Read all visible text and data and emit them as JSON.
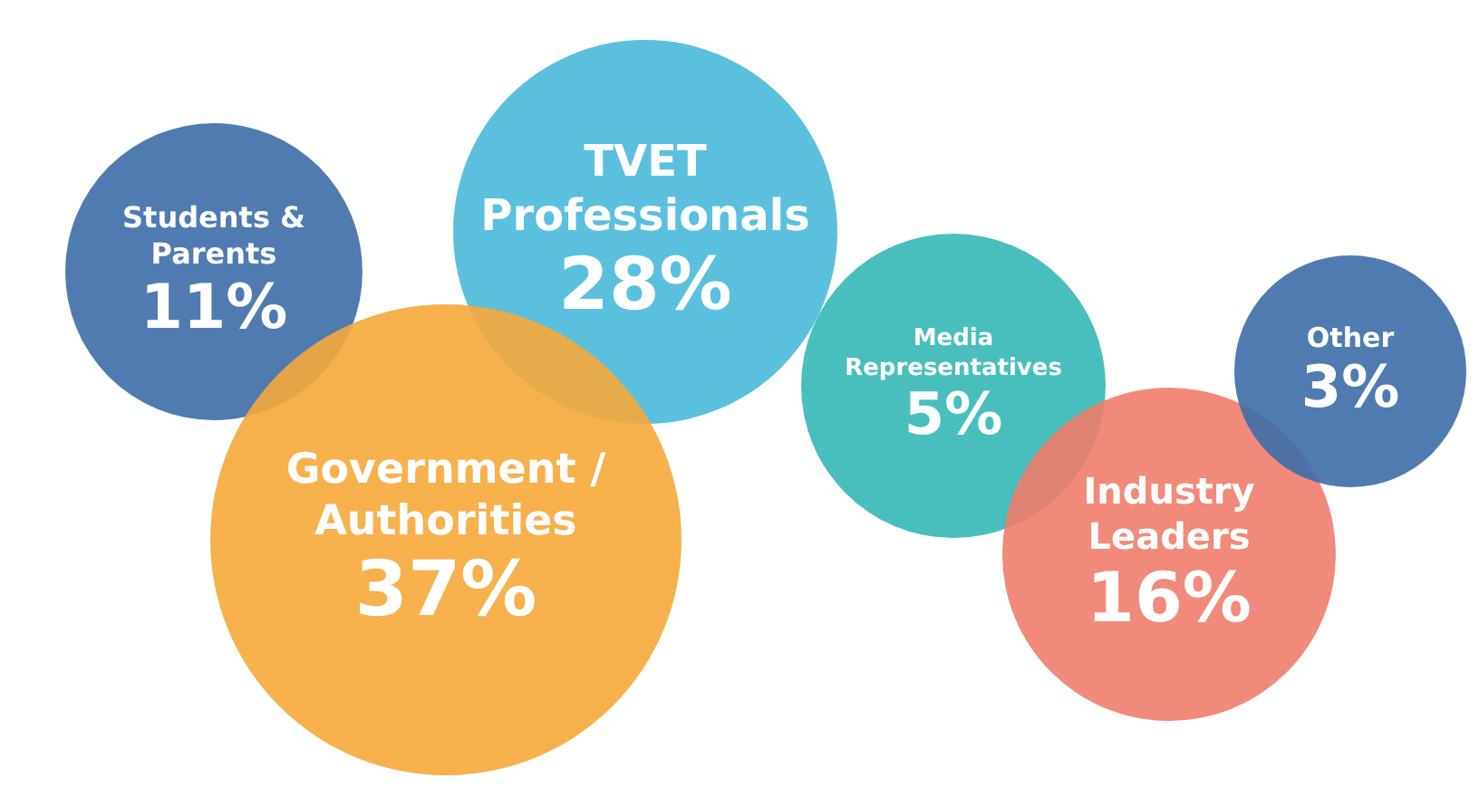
{
  "chart_data": {
    "type": "other",
    "categories": [
      "Students & Parents",
      "TVET Professionals",
      "Government / Authorities",
      "Media Representatives",
      "Industry Leaders",
      "Other"
    ],
    "values": [
      11,
      28,
      37,
      5,
      16,
      3
    ],
    "value_labels": [
      "11%",
      "28%",
      "37%",
      "5%",
      "16%",
      "3%"
    ],
    "colors": [
      "#3d6da8",
      "#48b9d9",
      "#f5a93a",
      "#34b8b6",
      "#ef7d6d",
      "#3d6da8"
    ]
  }
}
